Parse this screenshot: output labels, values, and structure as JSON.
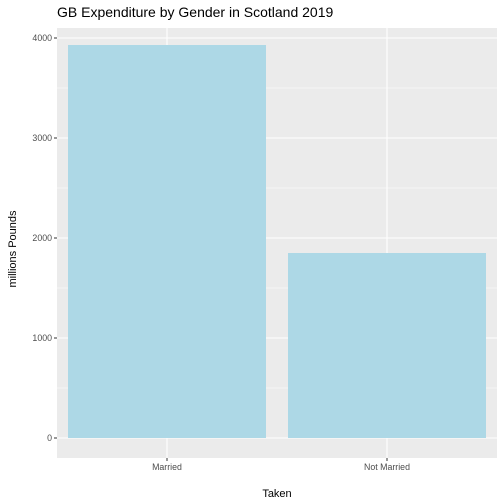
{
  "chart_data": {
    "type": "bar",
    "title": "GB Expenditure by Gender in Scotland 2019",
    "xlabel": "Taken",
    "ylabel": "millions Pounds",
    "categories": [
      "Married",
      "Not Married"
    ],
    "values": [
      3930,
      1850
    ],
    "ylim": [
      0,
      4000
    ],
    "yticks": [
      0,
      1000,
      2000,
      3000,
      4000
    ],
    "grid": true,
    "legend": "none",
    "colors": {
      "bar": "#add8e6",
      "panel": "#ebebeb",
      "grid_major": "#ffffff",
      "tick_label": "#4d4d4d"
    }
  }
}
